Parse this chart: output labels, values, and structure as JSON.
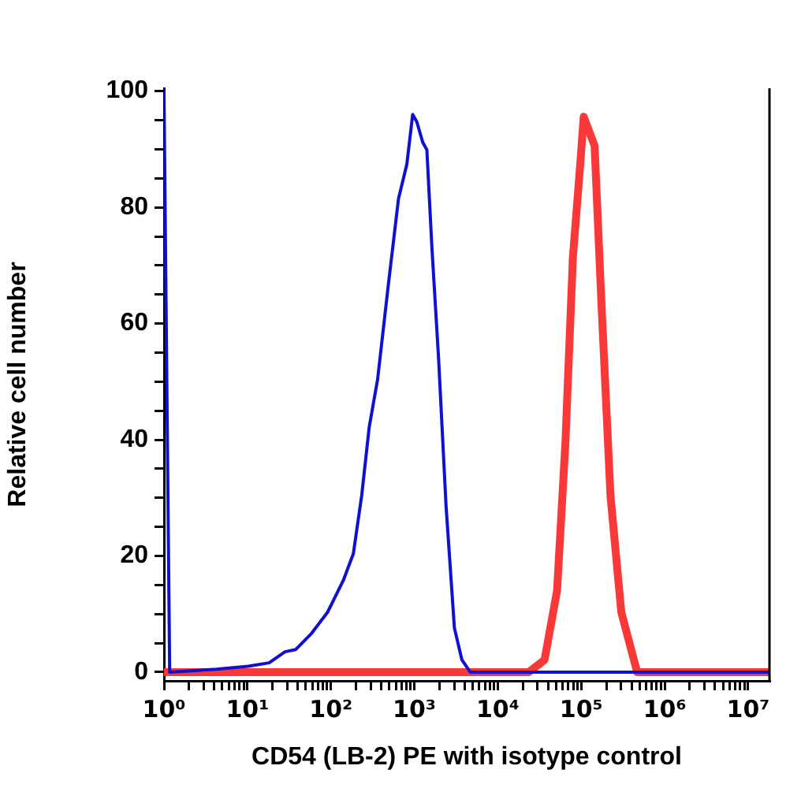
{
  "chart_data": {
    "type": "line",
    "xlabel": "CD54 (LB-2) PE with isotype control",
    "ylabel": "Relative cell number",
    "log": "x",
    "marker": "none",
    "line_style": "solid",
    "xlim": [
      1,
      18000000
    ],
    "xticks": [
      {
        "value": 1,
        "label": "10⁰"
      },
      {
        "value": 2,
        "label": null
      },
      {
        "value": 3,
        "label": null
      },
      {
        "value": 4,
        "label": null
      },
      {
        "value": 5,
        "label": null
      },
      {
        "value": 6,
        "label": null
      },
      {
        "value": 7,
        "label": null
      },
      {
        "value": 8,
        "label": null
      },
      {
        "value": 9,
        "label": null
      },
      {
        "value": 10,
        "label": "10¹"
      },
      {
        "value": 20,
        "label": null
      },
      {
        "value": 30,
        "label": null
      },
      {
        "value": 40,
        "label": null
      },
      {
        "value": 50,
        "label": null
      },
      {
        "value": 60,
        "label": null
      },
      {
        "value": 70,
        "label": null
      },
      {
        "value": 80,
        "label": null
      },
      {
        "value": 90,
        "label": null
      },
      {
        "value": 100,
        "label": "10²"
      },
      {
        "value": 200,
        "label": null
      },
      {
        "value": 300,
        "label": null
      },
      {
        "value": 400,
        "label": null
      },
      {
        "value": 500,
        "label": null
      },
      {
        "value": 600,
        "label": null
      },
      {
        "value": 700,
        "label": null
      },
      {
        "value": 800,
        "label": null
      },
      {
        "value": 900,
        "label": null
      },
      {
        "value": 1000,
        "label": "10³"
      },
      {
        "value": 2000,
        "label": null
      },
      {
        "value": 3000,
        "label": null
      },
      {
        "value": 4000,
        "label": null
      },
      {
        "value": 5000,
        "label": null
      },
      {
        "value": 6000,
        "label": null
      },
      {
        "value": 7000,
        "label": null
      },
      {
        "value": 8000,
        "label": null
      },
      {
        "value": 9000,
        "label": null
      },
      {
        "value": 10000,
        "label": "10⁴"
      },
      {
        "value": 20000,
        "label": null
      },
      {
        "value": 30000,
        "label": null
      },
      {
        "value": 40000,
        "label": null
      },
      {
        "value": 50000,
        "label": null
      },
      {
        "value": 60000,
        "label": null
      },
      {
        "value": 70000,
        "label": null
      },
      {
        "value": 80000,
        "label": null
      },
      {
        "value": 90000,
        "label": null
      },
      {
        "value": 100000,
        "label": "10⁵"
      },
      {
        "value": 200000,
        "label": null
      },
      {
        "value": 300000,
        "label": null
      },
      {
        "value": 400000,
        "label": null
      },
      {
        "value": 500000,
        "label": null
      },
      {
        "value": 600000,
        "label": null
      },
      {
        "value": 700000,
        "label": null
      },
      {
        "value": 800000,
        "label": null
      },
      {
        "value": 900000,
        "label": null
      },
      {
        "value": 1000000,
        "label": "10⁶"
      },
      {
        "value": 2000000,
        "label": null
      },
      {
        "value": 3000000,
        "label": null
      },
      {
        "value": 4000000,
        "label": null
      },
      {
        "value": 5000000,
        "label": null
      },
      {
        "value": 6000000,
        "label": null
      },
      {
        "value": 7000000,
        "label": null
      },
      {
        "value": 8000000,
        "label": null
      },
      {
        "value": 9000000,
        "label": null
      },
      {
        "value": 10000000,
        "label": "10⁷"
      }
    ],
    "ylim": [
      -1.5,
      100.5
    ],
    "yticks": [
      0,
      {
        "value": 5,
        "label": null
      },
      {
        "value": 10,
        "label": null
      },
      {
        "value": 15,
        "label": null
      },
      20,
      {
        "value": 25,
        "label": null
      },
      {
        "value": 30,
        "label": null
      },
      {
        "value": 35,
        "label": null
      },
      40,
      {
        "value": 45,
        "label": null
      },
      {
        "value": 50,
        "label": null
      },
      {
        "value": 55,
        "label": null
      },
      60,
      {
        "value": 65,
        "label": null
      },
      {
        "value": 70,
        "label": null
      },
      {
        "value": 75,
        "label": null
      },
      80,
      {
        "value": 85,
        "label": null
      },
      {
        "value": 90,
        "label": null
      },
      {
        "value": 95,
        "label": null
      },
      100
    ],
    "series": [
      {
        "color": "#1010d0",
        "x": [
          1,
          1.17,
          4.27,
          10.2,
          18.2,
          28.2,
          38,
          58.9,
          91.2,
          141,
          186,
          234,
          288,
          363,
          490,
          646,
          813,
          955,
          1072,
          1259,
          1413,
          1622,
          1950,
          2399,
          3020,
          3715,
          4677,
          18000000
        ],
        "values": [
          100,
          0,
          0.5,
          1,
          1.6,
          3.5,
          3.9,
          6.7,
          10.3,
          15.8,
          20.4,
          30.4,
          42.2,
          50.4,
          66.9,
          81.5,
          87.4,
          96,
          94.7,
          91.2,
          89.9,
          73.2,
          54.1,
          28.6,
          7.6,
          2.1,
          0,
          0
        ]
      },
      {
        "color": "#f93838",
        "x": [
          1,
          23440,
          36300,
          51300,
          64600,
          79400,
          97700,
          107000,
          144500,
          173800,
          223900,
          302000,
          467700,
          18000000
        ],
        "values": [
          0,
          0,
          2.1,
          14,
          39.5,
          71.4,
          87.8,
          95.6,
          90.6,
          64.1,
          30.4,
          10.3,
          0,
          0
        ]
      }
    ]
  }
}
